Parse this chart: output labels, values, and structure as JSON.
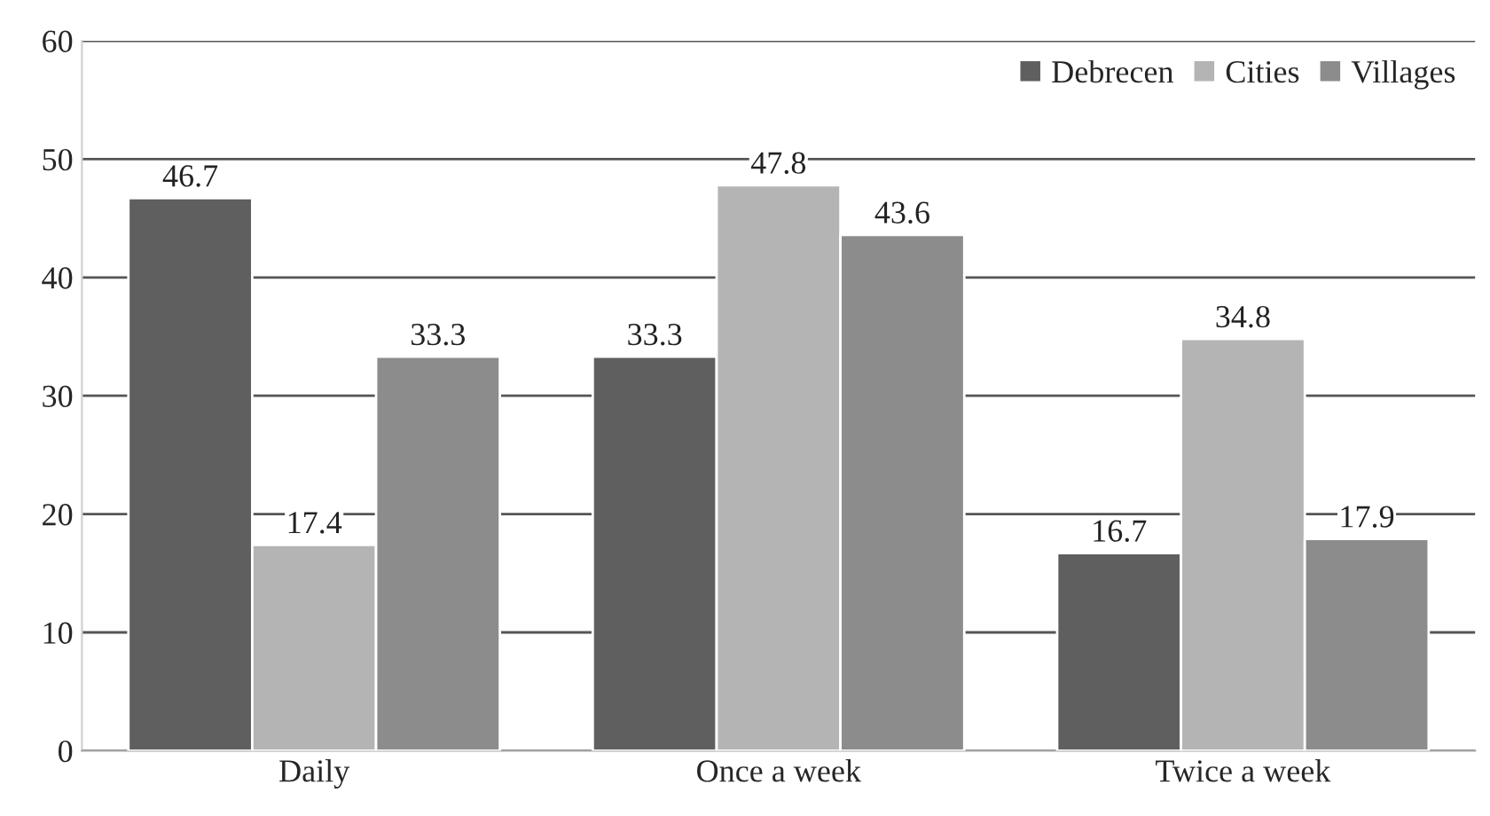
{
  "chart_data": {
    "type": "bar",
    "categories": [
      "Daily",
      "Once a week",
      "Twice a week"
    ],
    "series": [
      {
        "name": "Debrecen",
        "color": "#5f5f5f",
        "values": [
          46.7,
          33.3,
          16.7
        ]
      },
      {
        "name": "Cities",
        "color": "#b4b4b4",
        "values": [
          17.4,
          47.8,
          34.8
        ]
      },
      {
        "name": "Villages",
        "color": "#8c8c8c",
        "values": [
          33.3,
          43.6,
          17.9
        ]
      }
    ],
    "ylim": [
      0,
      60
    ],
    "yticks": [
      0,
      10,
      20,
      30,
      40,
      50,
      60
    ],
    "grid": "y",
    "legend": "top right",
    "data_labels": true
  }
}
